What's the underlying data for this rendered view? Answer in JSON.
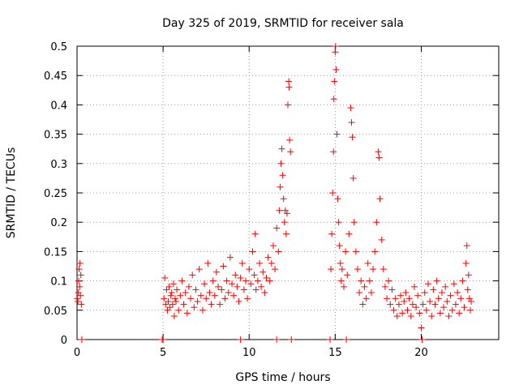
{
  "chart_data": {
    "type": "scatter",
    "title": "Day 325 of 2019, SRMTID for receiver sala",
    "xlabel": "GPS time / hours",
    "ylabel": "SRMTID / TECUs",
    "xlim": [
      0,
      24.5
    ],
    "ylim": [
      0,
      0.5
    ],
    "x_ticks": [
      0,
      5,
      10,
      15,
      20
    ],
    "x_tick_labels": [
      "0",
      "5",
      "10",
      "15",
      "20"
    ],
    "y_ticks": [
      0,
      0.05,
      0.1,
      0.15,
      0.2,
      0.25,
      0.3,
      0.35,
      0.4,
      0.45,
      0.5
    ],
    "y_tick_labels": [
      "0",
      "0.05",
      "0.1",
      "0.15",
      "0.2",
      "0.25",
      "0.3",
      "0.35",
      "0.4",
      "0.45",
      "0.5"
    ],
    "grid": true,
    "series": [
      {
        "name": "SRMTID",
        "marker": "+",
        "color": "#ff0000",
        "points": [
          [
            0.02,
            0.07
          ],
          [
            0.05,
            0.065
          ],
          [
            0.08,
            0.08
          ],
          [
            0.1,
            0.1
          ],
          [
            0.12,
            0.12
          ],
          [
            0.15,
            0.09
          ],
          [
            0.17,
            0.13
          ],
          [
            0.2,
            0.075
          ],
          [
            0.22,
            0.11
          ],
          [
            0.25,
            0.06
          ],
          [
            0.28,
            0.0
          ],
          [
            4.95,
            0.0
          ],
          [
            5.0,
            0.0
          ],
          [
            5.05,
            0.07
          ],
          [
            5.1,
            0.105
          ],
          [
            5.15,
            0.06
          ],
          [
            5.2,
            0.085
          ],
          [
            5.25,
            0.05
          ],
          [
            5.3,
            0.065
          ],
          [
            5.35,
            0.09
          ],
          [
            5.4,
            0.055
          ],
          [
            5.45,
            0.075
          ],
          [
            5.5,
            0.08
          ],
          [
            5.55,
            0.06
          ],
          [
            5.6,
            0.095
          ],
          [
            5.65,
            0.04
          ],
          [
            5.7,
            0.07
          ],
          [
            5.75,
            0.065
          ],
          [
            5.8,
            0.085
          ],
          [
            5.9,
            0.05
          ],
          [
            6.0,
            0.075
          ],
          [
            6.1,
            0.1
          ],
          [
            6.2,
            0.06
          ],
          [
            6.3,
            0.08
          ],
          [
            6.4,
            0.045
          ],
          [
            6.5,
            0.09
          ],
          [
            6.6,
            0.07
          ],
          [
            6.7,
            0.11
          ],
          [
            6.8,
            0.055
          ],
          [
            6.9,
            0.085
          ],
          [
            7.0,
            0.065
          ],
          [
            7.1,
            0.12
          ],
          [
            7.2,
            0.075
          ],
          [
            7.3,
            0.05
          ],
          [
            7.4,
            0.095
          ],
          [
            7.5,
            0.07
          ],
          [
            7.6,
            0.13
          ],
          [
            7.7,
            0.08
          ],
          [
            7.8,
            0.06
          ],
          [
            7.9,
            0.1
          ],
          [
            8.0,
            0.075
          ],
          [
            8.1,
            0.115
          ],
          [
            8.2,
            0.09
          ],
          [
            8.3,
            0.06
          ],
          [
            8.4,
            0.085
          ],
          [
            8.5,
            0.125
          ],
          [
            8.6,
            0.07
          ],
          [
            8.7,
            0.1
          ],
          [
            8.8,
            0.08
          ],
          [
            8.9,
            0.14
          ],
          [
            9.0,
            0.095
          ],
          [
            9.1,
            0.075
          ],
          [
            9.2,
            0.11
          ],
          [
            9.3,
            0.09
          ],
          [
            9.4,
            0.065
          ],
          [
            9.5,
            0.105
          ],
          [
            9.6,
            0.13
          ],
          [
            9.7,
            0.085
          ],
          [
            9.8,
            0.1
          ],
          [
            9.9,
            0.07
          ],
          [
            10.0,
            0.12
          ],
          [
            10.1,
            0.095
          ],
          [
            10.2,
            0.15
          ],
          [
            10.3,
            0.11
          ],
          [
            10.35,
            0.18
          ],
          [
            10.4,
            0.085
          ],
          [
            10.5,
            0.1
          ],
          [
            10.6,
            0.13
          ],
          [
            10.7,
            0.09
          ],
          [
            10.8,
            0.115
          ],
          [
            10.9,
            0.08
          ],
          [
            11.0,
            0.105
          ],
          [
            11.1,
            0.14
          ],
          [
            11.2,
            0.1
          ],
          [
            11.3,
            0.13
          ],
          [
            11.4,
            0.16
          ],
          [
            11.5,
            0.12
          ],
          [
            11.6,
            0.19
          ],
          [
            11.7,
            0.15
          ],
          [
            11.75,
            0.22
          ],
          [
            11.8,
            0.26
          ],
          [
            11.85,
            0.3
          ],
          [
            11.9,
            0.325
          ],
          [
            11.95,
            0.28
          ],
          [
            12.0,
            0.24
          ],
          [
            12.05,
            0.2
          ],
          [
            12.1,
            0.22
          ],
          [
            12.15,
            0.18
          ],
          [
            12.2,
            0.215
          ],
          [
            12.25,
            0.4
          ],
          [
            12.3,
            0.44
          ],
          [
            12.32,
            0.43
          ],
          [
            12.35,
            0.34
          ],
          [
            12.4,
            0.32
          ],
          [
            12.45,
            0.0
          ],
          [
            11.6,
            0.0
          ],
          [
            9.5,
            0.0
          ],
          [
            14.7,
            0.0
          ],
          [
            14.75,
            0.12
          ],
          [
            14.8,
            0.18
          ],
          [
            14.85,
            0.25
          ],
          [
            14.9,
            0.32
          ],
          [
            14.92,
            0.41
          ],
          [
            14.95,
            0.44
          ],
          [
            15.0,
            0.49
          ],
          [
            15.02,
            0.5
          ],
          [
            15.05,
            0.46
          ],
          [
            15.1,
            0.35
          ],
          [
            15.15,
            0.24
          ],
          [
            15.2,
            0.2
          ],
          [
            15.25,
            0.16
          ],
          [
            15.3,
            0.13
          ],
          [
            15.35,
            0.1
          ],
          [
            15.4,
            0.12
          ],
          [
            15.5,
            0.09
          ],
          [
            15.6,
            0.15
          ],
          [
            15.65,
            0.0
          ],
          [
            15.7,
            0.11
          ],
          [
            15.8,
            0.18
          ],
          [
            15.9,
            0.395
          ],
          [
            15.95,
            0.37
          ],
          [
            16.0,
            0.345
          ],
          [
            16.05,
            0.275
          ],
          [
            16.1,
            0.2
          ],
          [
            16.2,
            0.15
          ],
          [
            16.3,
            0.12
          ],
          [
            16.4,
            0.08
          ],
          [
            16.5,
            0.1
          ],
          [
            16.6,
            0.06
          ],
          [
            16.7,
            0.09
          ],
          [
            16.8,
            0.07
          ],
          [
            16.9,
            0.13
          ],
          [
            17.0,
            0.1
          ],
          [
            17.1,
            0.08
          ],
          [
            17.2,
            0.12
          ],
          [
            17.3,
            0.15
          ],
          [
            17.4,
            0.2
          ],
          [
            17.5,
            0.32
          ],
          [
            17.55,
            0.31
          ],
          [
            17.6,
            0.24
          ],
          [
            17.7,
            0.17
          ],
          [
            17.8,
            0.12
          ],
          [
            17.9,
            0.09
          ],
          [
            18.0,
            0.07
          ],
          [
            18.1,
            0.1
          ],
          [
            18.2,
            0.06
          ],
          [
            18.3,
            0.085
          ],
          [
            18.4,
            0.05
          ],
          [
            18.5,
            0.07
          ],
          [
            18.6,
            0.04
          ],
          [
            18.7,
            0.06
          ],
          [
            18.8,
            0.075
          ],
          [
            18.9,
            0.045
          ],
          [
            19.0,
            0.065
          ],
          [
            19.1,
            0.08
          ],
          [
            19.2,
            0.05
          ],
          [
            19.3,
            0.07
          ],
          [
            19.4,
            0.04
          ],
          [
            19.5,
            0.06
          ],
          [
            19.6,
            0.09
          ],
          [
            19.7,
            0.055
          ],
          [
            19.8,
            0.075
          ],
          [
            19.9,
            0.045
          ],
          [
            20.0,
            0.02
          ],
          [
            20.05,
            0.0
          ],
          [
            20.1,
            0.06
          ],
          [
            20.2,
            0.08
          ],
          [
            20.3,
            0.05
          ],
          [
            20.4,
            0.095
          ],
          [
            20.5,
            0.065
          ],
          [
            20.6,
            0.04
          ],
          [
            20.7,
            0.085
          ],
          [
            20.8,
            0.06
          ],
          [
            20.9,
            0.1
          ],
          [
            21.0,
            0.07
          ],
          [
            21.1,
            0.045
          ],
          [
            21.2,
            0.08
          ],
          [
            21.3,
            0.055
          ],
          [
            21.4,
            0.09
          ],
          [
            21.5,
            0.065
          ],
          [
            21.6,
            0.04
          ],
          [
            21.7,
            0.075
          ],
          [
            21.8,
            0.05
          ],
          [
            21.9,
            0.095
          ],
          [
            22.0,
            0.06
          ],
          [
            22.1,
            0.08
          ],
          [
            22.2,
            0.045
          ],
          [
            22.3,
            0.07
          ],
          [
            22.4,
            0.1
          ],
          [
            22.5,
            0.055
          ],
          [
            22.6,
            0.13
          ],
          [
            22.65,
            0.16
          ],
          [
            22.7,
            0.085
          ],
          [
            22.75,
            0.11
          ],
          [
            22.8,
            0.07
          ],
          [
            22.85,
            0.05
          ],
          [
            22.9,
            0.065
          ]
        ]
      }
    ]
  }
}
